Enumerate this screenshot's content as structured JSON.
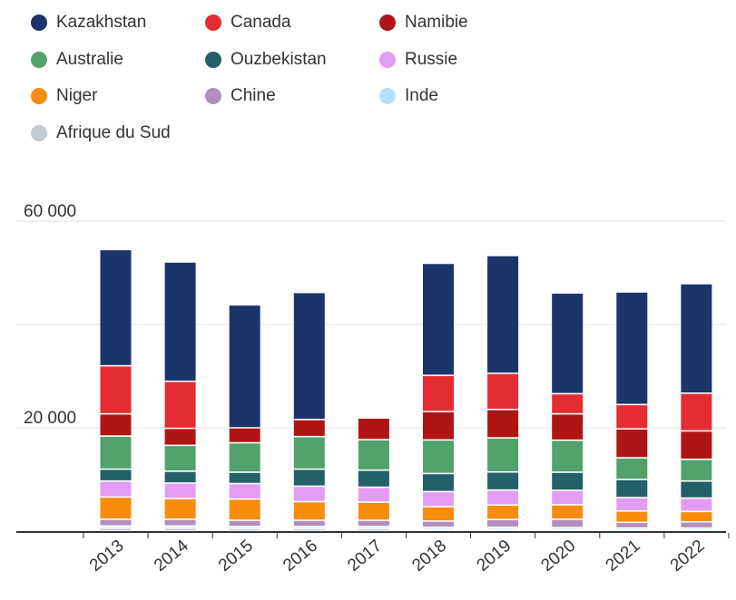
{
  "chart_data": {
    "type": "bar",
    "stacked": true,
    "categories": [
      "2013",
      "2014",
      "2015",
      "2016",
      "2017",
      "2018",
      "2019",
      "2020",
      "2021",
      "2022"
    ],
    "ylim": [
      0,
      60000
    ],
    "yticks": [
      {
        "value": 60000,
        "label": "60 000"
      },
      {
        "value": 40000,
        "label": ""
      },
      {
        "value": 20000,
        "label": "20 000"
      }
    ],
    "grid": true,
    "legend_position": "top",
    "series": [
      {
        "name": "Afrique du Sud",
        "color": "#c3cbd4",
        "values": [
          600,
          600,
          500,
          500,
          500,
          350,
          350,
          300,
          200,
          200
        ]
      },
      {
        "name": "Inde",
        "color": "#b3e3f8",
        "values": [
          400,
          400,
          400,
          400,
          400,
          400,
          400,
          400,
          400,
          400
        ]
      },
      {
        "name": "Chine",
        "color": "#b18fbf",
        "values": [
          1300,
          1300,
          1200,
          1200,
          1200,
          1200,
          1500,
          1600,
          1100,
          1200
        ]
      },
      {
        "name": "Niger",
        "color": "#f88c0c",
        "values": [
          4300,
          4000,
          4100,
          3600,
          3500,
          2800,
          2800,
          2800,
          2200,
          2000
        ]
      },
      {
        "name": "Russie",
        "color": "#e29df2",
        "values": [
          3100,
          3000,
          3000,
          3000,
          2900,
          2900,
          2900,
          2800,
          2600,
          2600
        ]
      },
      {
        "name": "Ouzbekistan",
        "color": "#236069",
        "values": [
          2300,
          2300,
          2200,
          3300,
          3300,
          3500,
          3500,
          3500,
          3500,
          3300
        ]
      },
      {
        "name": "Australie",
        "color": "#52a26b",
        "values": [
          6400,
          5000,
          5700,
          6300,
          5900,
          6500,
          6600,
          6200,
          4200,
          4200
        ]
      },
      {
        "name": "Namibie",
        "color": "#b01515",
        "values": [
          4300,
          3300,
          2900,
          3300,
          4200,
          5500,
          5500,
          5100,
          5600,
          5500
        ]
      },
      {
        "name": "Canada",
        "color": "#e52c32",
        "values": [
          9300,
          9100,
          0,
          0,
          0,
          7000,
          7000,
          3900,
          4700,
          7300
        ]
      },
      {
        "name": "Kazakhstan",
        "color": "#1b356b",
        "values": [
          22500,
          23100,
          23800,
          24600,
          0,
          21700,
          22800,
          19500,
          21800,
          21200
        ]
      }
    ]
  },
  "legend_order": [
    "Kazakhstan",
    "Canada",
    "Namibie",
    "Australie",
    "Ouzbekistan",
    "Russie",
    "Niger",
    "Chine",
    "Inde",
    "Afrique du Sud"
  ]
}
